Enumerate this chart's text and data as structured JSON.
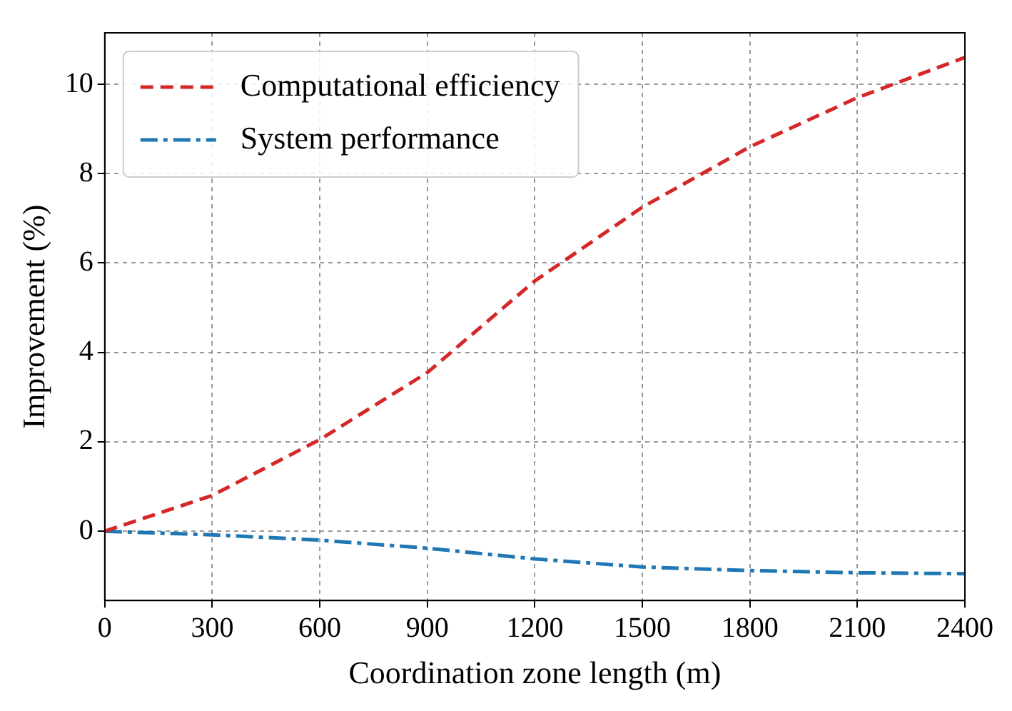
{
  "chart_data": {
    "type": "line",
    "xlabel": "Coordination zone length (m)",
    "ylabel": "Improvement (%)",
    "x": [
      0,
      300,
      600,
      900,
      1200,
      1500,
      1800,
      2100,
      2400
    ],
    "series": [
      {
        "name": "Computational efficiency",
        "color": "#d62728",
        "line_style": "dashed",
        "values": [
          0,
          0.8,
          2.05,
          3.55,
          5.6,
          7.25,
          8.6,
          9.7,
          10.6
        ]
      },
      {
        "name": "System performance",
        "color": "#1f77b4",
        "line_style": "dashdot",
        "values": [
          0,
          -0.08,
          -0.2,
          -0.38,
          -0.62,
          -0.8,
          -0.88,
          -0.93,
          -0.95
        ]
      }
    ],
    "xlim": [
      0,
      2400
    ],
    "xticks": [
      0,
      300,
      600,
      900,
      1200,
      1500,
      1800,
      2100,
      2400
    ],
    "ylim": [
      -1.55,
      11.15
    ],
    "yticks": [
      0,
      2,
      4,
      6,
      8,
      10
    ],
    "grid": true,
    "legend": "top left",
    "marker": "none"
  }
}
